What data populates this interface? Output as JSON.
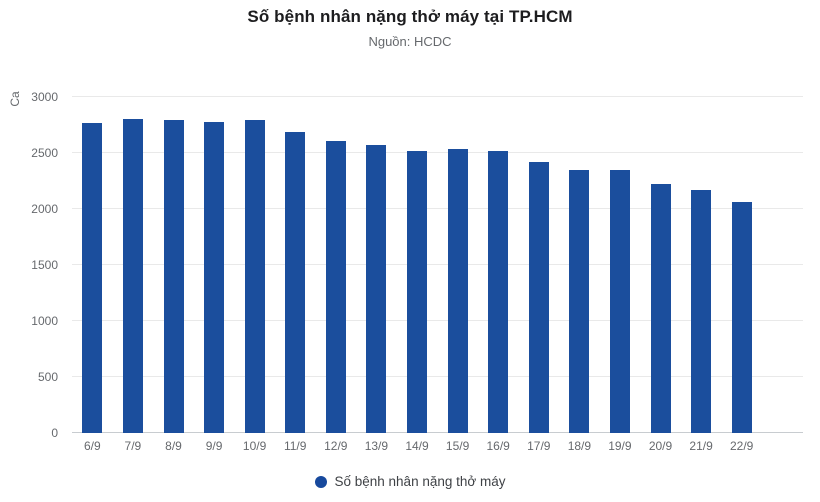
{
  "header": {
    "title": "Số bệnh nhân nặng thở máy tại TP.HCM",
    "subtitle": "Nguồn: HCDC"
  },
  "chart_data": {
    "type": "bar",
    "title": "Số bệnh nhân nặng thở máy tại TP.HCM",
    "subtitle": "Nguồn: HCDC",
    "xlabel": "",
    "ylabel": "Ca",
    "ylim": [
      0,
      3000
    ],
    "yticks": [
      0,
      500,
      1000,
      1500,
      2000,
      2500,
      3000
    ],
    "grid": true,
    "legend_position": "bottom",
    "categories": [
      "6/9",
      "7/9",
      "8/9",
      "9/9",
      "10/9",
      "11/9",
      "12/9",
      "13/9",
      "14/9",
      "15/9",
      "16/9",
      "17/9",
      "18/9",
      "19/9",
      "20/9",
      "21/9",
      "22/9"
    ],
    "series": [
      {
        "name": "Số bệnh nhân nặng thở máy",
        "color": "#1b4e9d",
        "values": [
          2770,
          2805,
          2795,
          2780,
          2795,
          2685,
          2610,
          2570,
          2520,
          2540,
          2515,
          2420,
          2345,
          2350,
          2225,
          2170,
          2060
        ]
      }
    ]
  },
  "colors": {
    "bar": "#1b4e9d",
    "gridline": "#e9e9e9",
    "axis_line": "#c8ccd0",
    "tick_label": "#66696d",
    "title": "#1d1d1f",
    "subtitle": "#66696d",
    "legend_label": "#3f4246"
  }
}
